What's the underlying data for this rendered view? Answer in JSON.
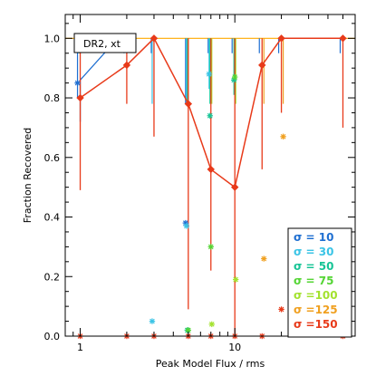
{
  "chart_data": {
    "type": "line",
    "xlabel": "Peak Model Flux / rms",
    "ylabel": "Fraction Recovered",
    "xscale": "log",
    "xlim": [
      0.8,
      60
    ],
    "ylim": [
      0,
      1.08
    ],
    "x_ticks": [
      1,
      10
    ],
    "x_tick_labels": [
      "1",
      "10"
    ],
    "y_ticks": [
      0.0,
      0.2,
      0.4,
      0.6,
      0.8,
      1.0
    ],
    "y_tick_labels": [
      "0.0",
      "0.2",
      "0.4",
      "0.6",
      "0.8",
      "1.0"
    ],
    "grid": false,
    "legend_position": "bottom-right",
    "annotation_box": "DR2, xt",
    "reference_line": {
      "y": 1.0,
      "color": "#ffaa00"
    },
    "series": [
      {
        "name": "σ = 10",
        "color": "#1f6fd1",
        "x": [
          1,
          2,
          3,
          5,
          7,
          10,
          15,
          20,
          50
        ],
        "y": [
          0.85,
          1.0,
          1.0,
          0.38,
          1.0,
          1.0,
          1.0,
          1.0,
          1.0
        ],
        "connect_to": 1.0
      },
      {
        "name": "σ = 30",
        "color": "#3bc4e6",
        "x": [
          1,
          3,
          5,
          7
        ],
        "y": [
          1.0,
          0.05,
          0.37,
          0.88
        ]
      },
      {
        "name": "σ = 50",
        "color": "#17c496",
        "x": [
          1,
          5,
          7,
          10
        ],
        "y": [
          1.0,
          0.02,
          0.74,
          0.86
        ]
      },
      {
        "name": "σ = 75",
        "color": "#55d535",
        "x": [
          1,
          5,
          7,
          10
        ],
        "y": [
          1.0,
          0.02,
          0.3,
          0.87
        ]
      },
      {
        "name": "σ =100",
        "color": "#a3e22e",
        "x": [
          7,
          10
        ],
        "y": [
          0.04,
          0.19
        ]
      },
      {
        "name": "σ =125",
        "color": "#f0a020",
        "x": [
          15,
          20
        ],
        "y": [
          0.26,
          0.67
        ]
      },
      {
        "name": "σ =150",
        "color": "#e83a1a",
        "x": [
          1,
          2,
          3,
          5,
          7,
          10,
          15,
          20,
          50
        ],
        "y": [
          0.8,
          0.91,
          1.0,
          0.78,
          0.56,
          0.5,
          0.91,
          1.0,
          1.0
        ],
        "err_low": [
          0.49,
          0.78,
          0.67,
          0.09,
          0.22,
          0.0,
          0.56,
          0.75,
          0.7
        ],
        "err_high": [
          1.0,
          1.0,
          1.0,
          1.0,
          1.0,
          1.0,
          1.0,
          1.0,
          1.0
        ],
        "extra_markers_x": [
          1,
          2,
          3,
          5,
          7,
          10,
          15,
          20,
          50
        ],
        "extra_markers_y": [
          0.0,
          0.0,
          0.0,
          0.0,
          0.0,
          0.0,
          0.0,
          0.09,
          0.0
        ]
      }
    ]
  },
  "legend": {
    "items": [
      {
        "label": "σ = 10",
        "color": "#1f6fd1"
      },
      {
        "label": "σ = 30",
        "color": "#3bc4e6"
      },
      {
        "label": "σ = 50",
        "color": "#17c496"
      },
      {
        "label": "σ = 75",
        "color": "#55d535"
      },
      {
        "label": "σ =100",
        "color": "#a3e22e"
      },
      {
        "label": "σ =125",
        "color": "#f0a020"
      },
      {
        "label": "σ =150",
        "color": "#e83a1a"
      }
    ]
  }
}
